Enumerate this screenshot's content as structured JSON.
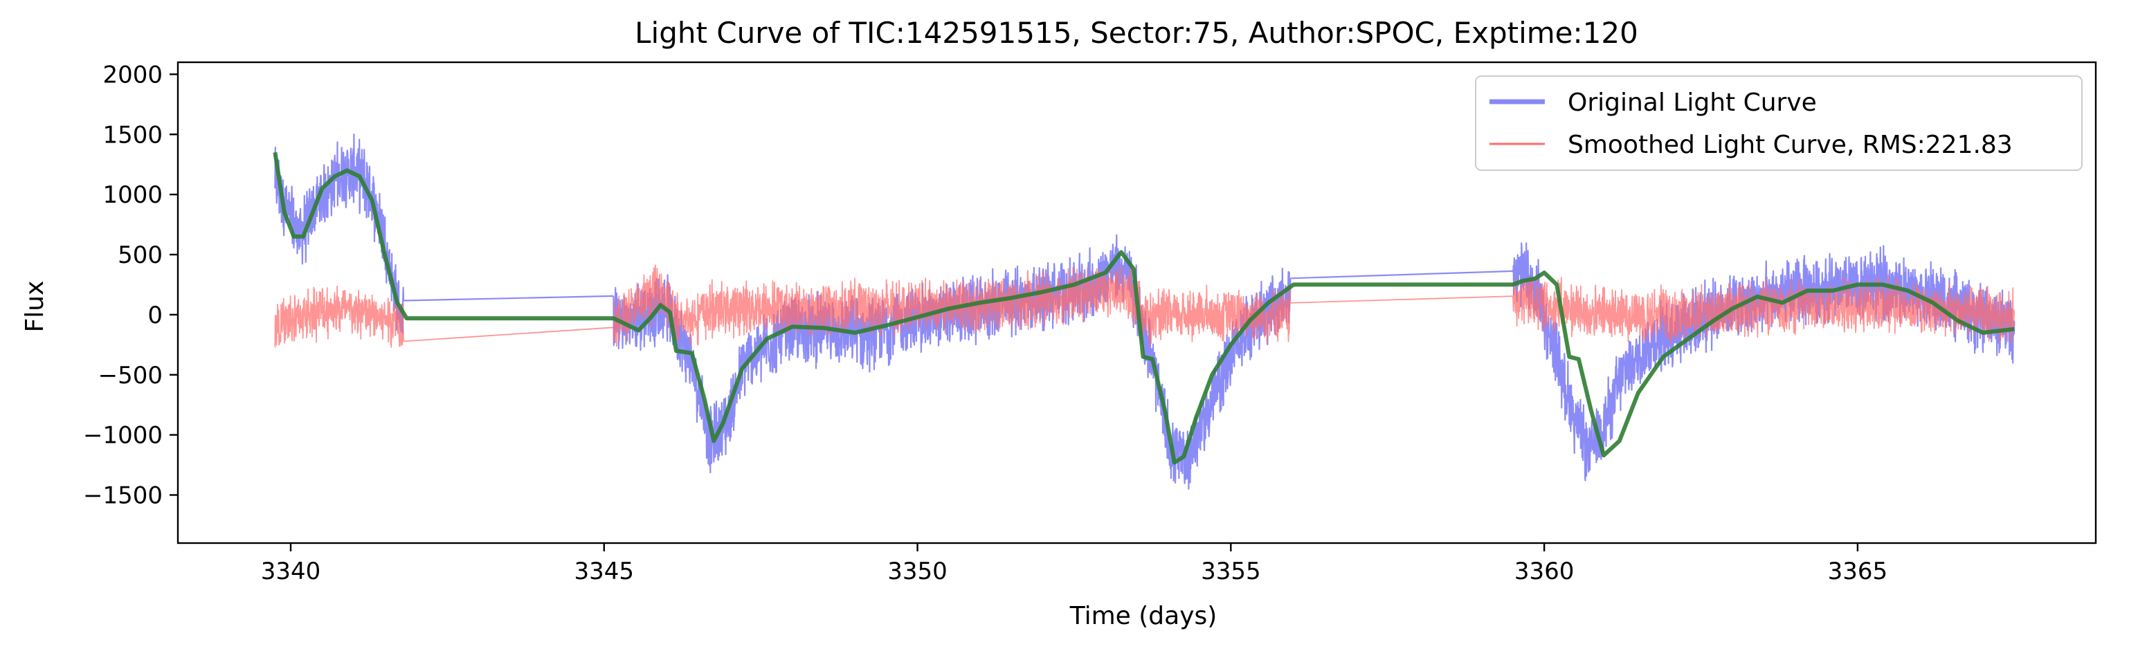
{
  "chart_data": {
    "type": "line",
    "title": "Light Curve of TIC:142591515, Sector:75, Author:SPOC, Exptime:120",
    "xlabel": "Time (days)",
    "ylabel": "Flux",
    "xlim": [
      3338.2,
      3368.8
    ],
    "ylim": [
      -1900,
      2100
    ],
    "xticks": [
      3340,
      3345,
      3350,
      3355,
      3360,
      3365
    ],
    "xtick_labels": [
      "3340",
      "3345",
      "3350",
      "3355",
      "3360",
      "3365"
    ],
    "yticks": [
      -1500,
      -1000,
      -500,
      0,
      500,
      1000,
      1500,
      2000
    ],
    "ytick_labels": [
      "−1500",
      "−1000",
      "−500",
      "0",
      "500",
      "1000",
      "1500",
      "2000"
    ],
    "grid": false,
    "legend_position": "top-right",
    "series": [
      {
        "name": "Original Light Curve",
        "color": "#7b7bf7",
        "noise": 330,
        "x": [
          3339.75,
          3339.9,
          3340.15,
          3340.45,
          3340.75,
          3341.0,
          3341.2,
          3341.45,
          3341.65,
          3341.8,
          3345.15,
          3345.4,
          3345.7,
          3346.0,
          3346.2,
          3346.45,
          3346.7,
          3346.95,
          3347.25,
          3347.6,
          3348.0,
          3348.6,
          3349.2,
          3349.8,
          3350.4,
          3351.0,
          3351.6,
          3352.2,
          3352.8,
          3353.15,
          3353.4,
          3353.75,
          3354.05,
          3354.3,
          3354.6,
          3354.9,
          3355.25,
          3355.6,
          3355.95,
          3359.5,
          3359.7,
          3359.9,
          3360.15,
          3360.45,
          3360.7,
          3360.95,
          3361.3,
          3361.8,
          3362.4,
          3363.0,
          3363.6,
          3364.2,
          3364.8,
          3365.4,
          3366.0,
          3366.6,
          3367.1,
          3367.5
        ],
        "y": [
          1150,
          900,
          650,
          950,
          1150,
          1200,
          1100,
          750,
          200,
          -80,
          0,
          -80,
          20,
          60,
          -150,
          -500,
          -1050,
          -900,
          -400,
          -250,
          -130,
          -120,
          -160,
          -60,
          -10,
          50,
          120,
          170,
          250,
          400,
          300,
          -400,
          -1150,
          -1200,
          -850,
          -450,
          -100,
          50,
          130,
          400,
          300,
          150,
          -250,
          -800,
          -1150,
          -900,
          -450,
          -200,
          -50,
          80,
          130,
          200,
          220,
          250,
          180,
          50,
          -50,
          -100
        ]
      },
      {
        "name": "Smoothed Light Curve, RMS:221.83",
        "color": "#ff6b6b",
        "noise": 260,
        "x": [
          3339.75,
          3340.2,
          3340.7,
          3341.2,
          3341.8,
          3345.15,
          3345.5,
          3345.9,
          3346.2,
          3346.6,
          3347.2,
          3348.0,
          3349.0,
          3350.0,
          3351.0,
          3352.0,
          3352.8,
          3353.3,
          3353.7,
          3354.1,
          3354.6,
          3355.2,
          3355.95,
          3359.5,
          3359.9,
          3360.3,
          3360.8,
          3361.5,
          3362.5,
          3363.5,
          3364.5,
          3365.5,
          3366.5,
          3367.5
        ],
        "y": [
          -100,
          0,
          50,
          0,
          -50,
          -80,
          50,
          220,
          -80,
          30,
          60,
          50,
          60,
          60,
          80,
          130,
          180,
          200,
          -50,
          0,
          0,
          0,
          -10,
          150,
          100,
          50,
          0,
          0,
          20,
          60,
          80,
          90,
          20,
          -10
        ]
      },
      {
        "name": "",
        "color": "#2e7d32",
        "noise": 0,
        "x": [
          3339.75,
          3339.9,
          3340.05,
          3340.2,
          3340.35,
          3340.5,
          3340.7,
          3340.9,
          3341.1,
          3341.3,
          3341.5,
          3341.7,
          3341.85,
          3345.15,
          3345.35,
          3345.55,
          3345.75,
          3345.9,
          3346.05,
          3346.15,
          3346.4,
          3346.6,
          3346.75,
          3346.9,
          3347.2,
          3347.6,
          3348.0,
          3348.5,
          3349.0,
          3349.5,
          3350.0,
          3350.5,
          3351.0,
          3351.5,
          3352.0,
          3352.5,
          3353.0,
          3353.25,
          3353.45,
          3353.6,
          3353.75,
          3353.95,
          3354.1,
          3354.25,
          3354.45,
          3354.7,
          3355.0,
          3355.3,
          3355.6,
          3356.0,
          3359.5,
          3359.65,
          3359.85,
          3360.0,
          3360.2,
          3360.4,
          3360.55,
          3360.75,
          3360.95,
          3361.2,
          3361.5,
          3361.9,
          3362.3,
          3362.7,
          3363.0,
          3363.4,
          3363.8,
          3364.2,
          3364.6,
          3365.0,
          3365.4,
          3365.8,
          3366.2,
          3366.6,
          3367.0,
          3367.5
        ],
        "y": [
          1350,
          850,
          650,
          650,
          850,
          1050,
          1150,
          1200,
          1150,
          950,
          500,
          100,
          -30,
          -30,
          -80,
          -130,
          -20,
          80,
          20,
          -300,
          -320,
          -700,
          -1050,
          -900,
          -450,
          -200,
          -100,
          -110,
          -150,
          -90,
          -20,
          50,
          100,
          140,
          190,
          250,
          350,
          520,
          380,
          -350,
          -370,
          -800,
          -1230,
          -1180,
          -850,
          -500,
          -250,
          -50,
          100,
          250,
          250,
          280,
          300,
          350,
          250,
          -350,
          -370,
          -800,
          -1170,
          -1050,
          -650,
          -350,
          -200,
          -50,
          50,
          150,
          100,
          200,
          200,
          250,
          250,
          200,
          100,
          -50,
          -150,
          -120
        ]
      }
    ]
  }
}
